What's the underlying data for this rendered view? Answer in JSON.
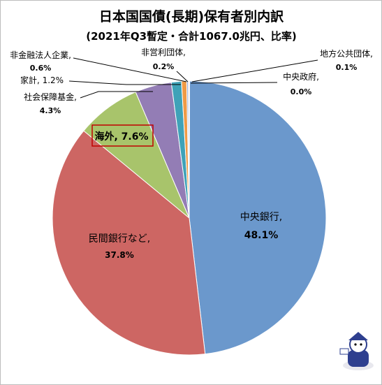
{
  "chart_data": {
    "type": "pie",
    "title": "日本国国債(長期)保有者別内訳",
    "subtitle": "(2021年Q3暫定・合計1067.0兆円、比率)",
    "start_angle_deg": 0,
    "direction": "clockwise",
    "slices": [
      {
        "name": "中央銀行",
        "value": 48.1,
        "label": "中央銀行,",
        "value_label": "48.1%",
        "color": "#6b98cc"
      },
      {
        "name": "民間銀行など",
        "value": 37.8,
        "label": "民間銀行など,",
        "value_label": "37.8%",
        "color": "#cd6663"
      },
      {
        "name": "海外",
        "value": 7.6,
        "label": "海外, 7.6%",
        "value_label": "",
        "color": "#a8c46b",
        "highlight_color": "#c00000"
      },
      {
        "name": "社会保障基金",
        "value": 4.3,
        "label": "社会保障基金,",
        "value_label": "4.3%",
        "color": "#937db5"
      },
      {
        "name": "家計",
        "value": 1.2,
        "label": "家計, 1.2%",
        "value_label": "",
        "color": "#3fa2b8"
      },
      {
        "name": "非金融法人企業",
        "value": 0.6,
        "label": "非金融法人企業,",
        "value_label": "0.6%",
        "color": "#f09a45"
      },
      {
        "name": "非営利団体",
        "value": 0.2,
        "label": "非営利団体,",
        "value_label": "0.2%",
        "color": "#9db1d8"
      },
      {
        "name": "地方公共団体",
        "value": 0.1,
        "label": "地方公共団体,",
        "value_label": "0.1%",
        "color": "#e6a3a1"
      },
      {
        "name": "中央政府",
        "value": 0.0,
        "label": "中央政府,",
        "value_label": "0.0%",
        "color": "#c9dba3"
      }
    ],
    "legend": "none",
    "slice_border_color": "#ffffff",
    "leader_line_color": "#000000"
  }
}
